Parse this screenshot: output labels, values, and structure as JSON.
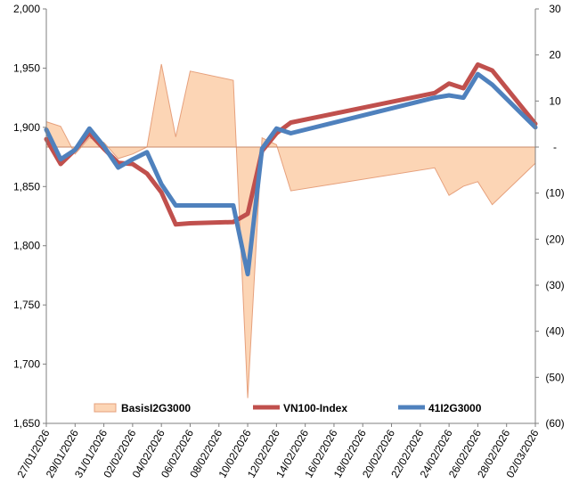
{
  "chart_data": {
    "type": "line",
    "x": [
      "27/01/2026",
      "28/01/2026",
      "29/01/2026",
      "30/01/2026",
      "31/01/2026",
      "01/02/2026",
      "02/02/2026",
      "03/02/2026",
      "04/02/2026",
      "05/02/2026",
      "06/02/2026",
      "09/02/2026",
      "10/02/2026",
      "11/02/2026",
      "12/02/2026",
      "13/02/2026",
      "23/02/2026",
      "24/02/2026",
      "25/02/2026",
      "26/02/2026",
      "27/02/2026",
      "02/03/2026"
    ],
    "x_tick_labels": [
      "27/01/2026",
      "29/01/2026",
      "31/01/2026",
      "02/02/2026",
      "04/02/2026",
      "06/02/2026",
      "08/02/2026",
      "10/02/2026",
      "12/02/2026",
      "14/02/2026",
      "16/02/2026",
      "18/02/2026",
      "20/02/2026",
      "22/02/2026",
      "24/02/2026",
      "26/02/2026",
      "28/02/2026",
      "02/03/2026"
    ],
    "ylim": [
      1650,
      2000
    ],
    "y_ticks": [
      "1,650",
      "1,700",
      "1,750",
      "1,800",
      "1,850",
      "1,900",
      "1,950",
      "2,000"
    ],
    "y2lim": [
      -60,
      30
    ],
    "y2_ticks": [
      "(60)",
      "(50)",
      "(40)",
      "(30)",
      "(20)",
      "(10)",
      "-",
      "10",
      "20",
      "30"
    ],
    "series": [
      {
        "name": "BasisI2G3000",
        "kind": "area",
        "axis": "right",
        "color": "#fcd5b5",
        "edge_color": "#e6a07c",
        "values": [
          5.5,
          4.5,
          -1.5,
          2,
          1,
          -2.5,
          -1.5,
          0,
          18,
          2.2,
          16.5,
          14.5,
          -54.5,
          2,
          0.5,
          -9.5,
          -4.5,
          -10.5,
          -8.5,
          -7.5,
          -12.5,
          -3.5
        ]
      },
      {
        "name": "VN100-Index",
        "kind": "line",
        "axis": "left",
        "color": "#c0504d",
        "values": [
          1890,
          1869,
          1881,
          1895,
          1882,
          1870,
          1869,
          1861,
          1845,
          1818,
          1819,
          1820,
          1827,
          1880,
          1895,
          1904,
          1929,
          1937,
          1933,
          1953,
          1948,
          1903
        ]
      },
      {
        "name": "41I2G3000",
        "kind": "line",
        "axis": "left",
        "color": "#4f81bd",
        "values": [
          1898,
          1873,
          1881,
          1899,
          1884,
          1866,
          1873,
          1879,
          1852,
          1834,
          1834,
          1834,
          1776,
          1882,
          1899,
          1895,
          1925,
          1927,
          1925,
          1945,
          1936,
          1900
        ]
      }
    ],
    "legend_position": "bottom-inside",
    "grid": false
  }
}
